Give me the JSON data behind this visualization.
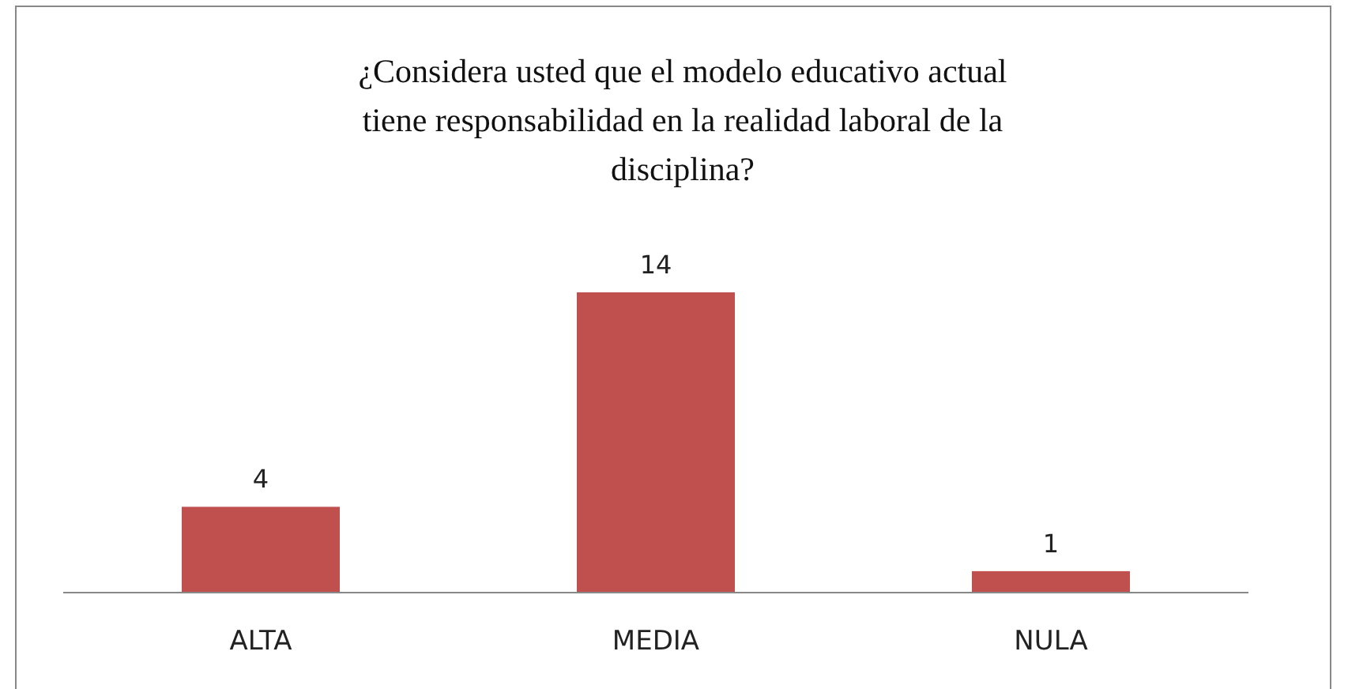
{
  "chart_data": {
    "type": "bar",
    "title": "¿Considera usted que el modelo educativo actual tiene responsabilidad en la realidad laboral de la disciplina?",
    "categories": [
      "ALTA",
      "MEDIA",
      "NULA"
    ],
    "values": [
      4,
      14,
      1
    ],
    "color": "#c0504d",
    "data_labels": true
  }
}
